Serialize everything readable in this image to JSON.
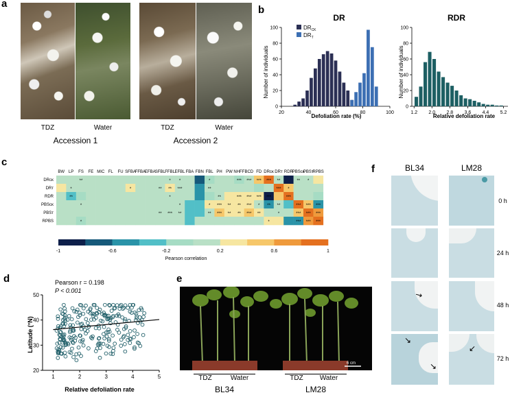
{
  "panel_a": {
    "label": "a",
    "captions": [
      "TDZ",
      "Water",
      "TDZ",
      "Water"
    ],
    "acc1": "Accession 1",
    "acc2": "Accession 2"
  },
  "panel_b": {
    "label": "b",
    "dr_title": "DR",
    "rdr_title": "RDR",
    "ylabel": "Number of individuals",
    "dr_xlabel": "Defoliation rate (%)",
    "rdr_xlabel": "Relative defoliation rate",
    "legend": [
      {
        "base": "DR",
        "sub": "CK"
      },
      {
        "base": "DR",
        "sub": "T"
      }
    ]
  },
  "panel_c": {
    "label": "c",
    "columns": [
      "BW",
      "LP",
      "FS",
      "FE",
      "MIC",
      "FL",
      "FU",
      "SFBA",
      "FFBA",
      "EFBA",
      "SFBL",
      "FFBL",
      "EFBL",
      "FBA",
      "FBN",
      "FBL",
      "PH",
      "PW",
      "NHFF",
      "BCD",
      "FD",
      "DRᴄᴋ",
      "DRᴛ",
      "RDR",
      "PBSᴄᴋ",
      "PBSᴛ",
      "RPBS"
    ],
    "rows": [
      "DRᴄᴋ",
      "DRᴛ",
      "RDR",
      "PBSᴄᴋ",
      "PBSᴛ",
      "RPBS"
    ],
    "colorbar_ticks": [
      "-1",
      "-0.6",
      "-0.2",
      "0.2",
      "0.6",
      "1"
    ],
    "colorbar_label": "Pearson correlation"
  },
  "panel_d": {
    "label": "d",
    "stat1": "Pearson r = 0.198",
    "stat2": "P < 0.001",
    "xlabel": "Relative defoliation rate",
    "ylabel": "Latitude (°N)"
  },
  "panel_e": {
    "label": "e",
    "scale": "6 cm",
    "captions": [
      "TDZ",
      "Water",
      "TDZ",
      "Water"
    ],
    "groups": [
      "BL34",
      "LM28"
    ]
  },
  "panel_f": {
    "label": "f",
    "cols": [
      "BL34",
      "LM28"
    ],
    "times": [
      "0 h",
      "24 h",
      "48 h",
      "72 h"
    ]
  },
  "chart_data": [
    {
      "type": "bar",
      "title": "DR",
      "xlabel": "Defoliation rate (%)",
      "ylabel": "Number of individuals",
      "xlim": [
        20,
        100
      ],
      "ylim": [
        0,
        100
      ],
      "xticks": [
        20,
        40,
        60,
        80,
        100
      ],
      "yticks": [
        0,
        20,
        40,
        60,
        80,
        100
      ],
      "series": [
        {
          "name": "DR_CK",
          "color": "#2b2f54",
          "x": [
            30,
            33,
            36,
            39,
            42,
            45,
            48,
            51,
            54,
            57,
            60,
            63,
            66,
            69,
            72
          ],
          "values": [
            2,
            6,
            10,
            20,
            36,
            48,
            60,
            66,
            70,
            67,
            58,
            44,
            30,
            20,
            8
          ]
        },
        {
          "name": "DR_T",
          "color": "#3c6fb3",
          "x": [
            72,
            75,
            78,
            81,
            84,
            87,
            90
          ],
          "values": [
            8,
            18,
            30,
            42,
            97,
            75,
            25
          ]
        }
      ]
    },
    {
      "type": "bar",
      "title": "RDR",
      "xlabel": "Relative defoliation rate",
      "ylabel": "Number of individuals",
      "ylim": [
        0,
        100
      ],
      "yticks": [
        0,
        20,
        40,
        60,
        80,
        100
      ],
      "xticks": [
        "1.2",
        "2.0",
        "2.8",
        "3.6",
        "4.4",
        "5.2"
      ],
      "series": [
        {
          "name": "RDR",
          "color": "#1d5f63",
          "x": [
            1.3,
            1.5,
            1.7,
            1.9,
            2.1,
            2.3,
            2.5,
            2.7,
            2.9,
            3.1,
            3.3,
            3.5,
            3.7,
            3.9,
            4.1,
            4.3,
            4.5,
            4.7,
            4.9,
            5.1
          ],
          "values": [
            12,
            25,
            56,
            69,
            60,
            44,
            37,
            30,
            26,
            20,
            14,
            10,
            9,
            7,
            5,
            3,
            2,
            2,
            1,
            1
          ]
        }
      ]
    },
    {
      "type": "heatmap",
      "cells": [
        [
          0.1,
          0.15,
          0.05,
          0,
          0.05,
          0,
          0.05,
          0.1,
          0.1,
          0.05,
          0.1,
          0.05,
          0.05,
          0.1,
          -0.65,
          -0.1,
          0.1,
          0.1,
          -0.1,
          0.05,
          0.5,
          1,
          0.15,
          -0.85,
          0.05,
          0.1,
          0.2
        ],
        [
          0.2,
          0.1,
          0.15,
          0.05,
          0.05,
          0,
          0.1,
          0.2,
          0.1,
          0.1,
          0.15,
          0.2,
          0.1,
          0.1,
          -0.6,
          0.15,
          0.1,
          0.1,
          0.05,
          0.05,
          -0.15,
          0.15,
          1,
          0.45,
          0.1,
          0.05,
          0.1
        ],
        [
          0.1,
          -0.3,
          -0.1,
          0,
          0,
          0,
          0,
          0,
          0,
          0,
          0,
          0,
          0,
          0,
          -0.5,
          -0.1,
          0.1,
          0.2,
          0.3,
          0.35,
          0.25,
          -0.85,
          0.45,
          1,
          0,
          0.05,
          -0.1
        ],
        [
          0.1,
          0.1,
          0,
          0,
          0,
          0,
          0,
          0,
          0,
          0,
          0,
          0.05,
          0.1,
          -0.3,
          -0.3,
          0.2,
          0.35,
          0.25,
          0.25,
          0.25,
          0.15,
          -0.6,
          0.1,
          -0.3,
          1,
          0.4,
          -0.55
        ],
        [
          0.1,
          0.1,
          0,
          0,
          0,
          0,
          0,
          0,
          0,
          0,
          0.05,
          0.05,
          0.05,
          -0.3,
          -0.3,
          0.1,
          0.5,
          0.2,
          0.3,
          0.5,
          0.2,
          0.1,
          0.05,
          0.05,
          0.4,
          1,
          0.7
        ],
        [
          0.05,
          0.05,
          -0.2,
          0,
          0,
          0,
          0,
          0,
          0,
          0,
          0,
          0,
          0,
          -0.3,
          0,
          0.05,
          0.1,
          0.1,
          0.1,
          0.1,
          0.05,
          0.2,
          0.2,
          -0.55,
          -0.55,
          0.7,
          1
        ]
      ],
      "stars": [
        [
          null,
          null,
          "**",
          null,
          null,
          null,
          null,
          null,
          null,
          null,
          null,
          "*",
          "*",
          null,
          null,
          "*",
          null,
          null,
          "***",
          "***",
          "***",
          "***",
          "**",
          null,
          "**",
          "*",
          null
        ],
        [
          null,
          "*",
          null,
          null,
          null,
          null,
          null,
          "*",
          null,
          null,
          "**",
          "**",
          "***",
          null,
          null,
          "**",
          null,
          null,
          null,
          null,
          null,
          null,
          "***",
          "*",
          null,
          null,
          null
        ],
        [
          null,
          "**",
          null,
          null,
          null,
          null,
          null,
          null,
          null,
          null,
          null,
          "*",
          null,
          null,
          null,
          null,
          "**",
          null,
          "***",
          "***",
          "***",
          "***",
          null,
          "***",
          null,
          null,
          null
        ],
        [
          null,
          null,
          "*",
          null,
          null,
          null,
          null,
          null,
          null,
          null,
          null,
          null,
          "*",
          null,
          null,
          "*",
          "***",
          "**",
          "**",
          "***",
          "*",
          "**",
          "**",
          null,
          "***",
          "***",
          "***"
        ],
        [
          null,
          null,
          null,
          null,
          null,
          null,
          null,
          null,
          null,
          null,
          "**",
          "***",
          "**",
          null,
          null,
          "**",
          "***",
          "**",
          "**",
          "***",
          "**",
          null,
          "*",
          null,
          "***",
          "***",
          "***"
        ],
        [
          null,
          null,
          "*",
          null,
          null,
          null,
          null,
          null,
          null,
          null,
          null,
          null,
          null,
          null,
          null,
          null,
          null,
          null,
          null,
          null,
          null,
          "*",
          null,
          null,
          "***",
          "***",
          "***"
        ]
      ]
    },
    {
      "type": "scatter",
      "xlabel": "Relative defoliation rate",
      "ylabel": "Latitude (°N)",
      "xlim": [
        0.6,
        5
      ],
      "ylim": [
        20,
        50
      ],
      "xticks": [
        1,
        2,
        3,
        4,
        5
      ],
      "yticks": [
        20,
        30,
        40,
        50
      ],
      "trend": [
        [
          1,
          36.2
        ],
        [
          5,
          40.2
        ]
      ]
    }
  ]
}
